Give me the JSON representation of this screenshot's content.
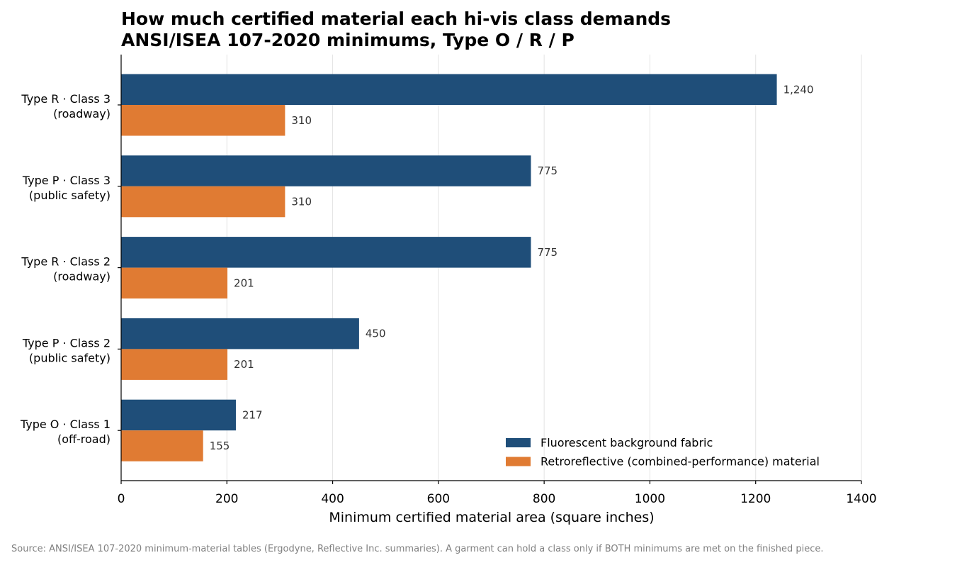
{
  "chart_data": {
    "type": "bar",
    "orientation": "horizontal",
    "title": "How much certified material each hi-vis class demands",
    "subtitle": "ANSI/ISEA 107-2020 minimums, Type O / R / P",
    "xlabel": "Minimum certified material area (square inches)",
    "ylabel": "",
    "xlim": [
      0,
      1400
    ],
    "xticks": [
      0,
      200,
      400,
      600,
      800,
      1000,
      1200,
      1400
    ],
    "grid": "vertical",
    "legend_position": "lower-right",
    "categories": [
      {
        "line1": "Type R · Class 3",
        "line2": "(roadway)"
      },
      {
        "line1": "Type P · Class 3",
        "line2": "(public safety)"
      },
      {
        "line1": "Type R · Class 2",
        "line2": "(roadway)"
      },
      {
        "line1": "Type P · Class 2",
        "line2": "(public safety)"
      },
      {
        "line1": "Type O · Class 1",
        "line2": "(off-road)"
      }
    ],
    "series": [
      {
        "name": "Fluorescent background fabric",
        "color": "#1f4e79",
        "values": [
          1240,
          775,
          775,
          450,
          217
        ],
        "labels": [
          "1,240",
          "775",
          "775",
          "450",
          "217"
        ]
      },
      {
        "name": "Retroreflective (combined-performance) material",
        "color": "#e07b33",
        "values": [
          310,
          310,
          201,
          201,
          155
        ],
        "labels": [
          "310",
          "310",
          "201",
          "201",
          "155"
        ]
      }
    ],
    "source": "Source: ANSI/ISEA 107-2020 minimum-material tables (Ergodyne, Reflective Inc. summaries). A garment can hold a class only if BOTH minimums are met on the finished piece."
  }
}
